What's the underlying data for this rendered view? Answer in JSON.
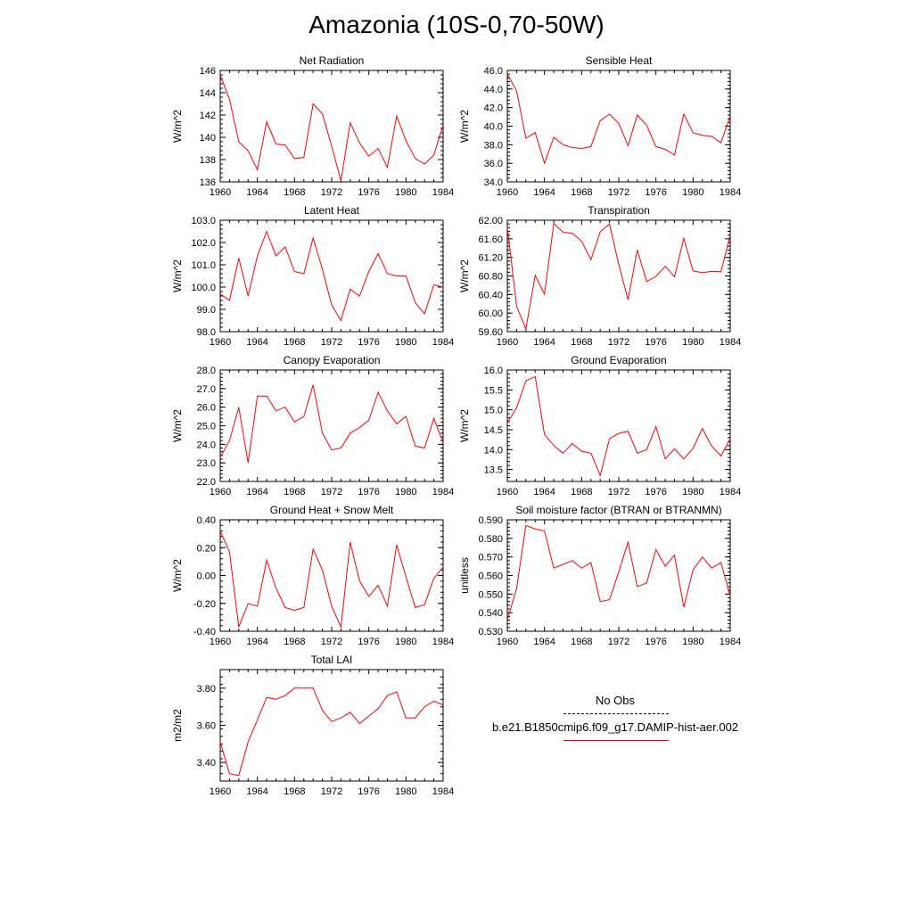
{
  "title": "Amazonia (10S-0,70-50W)",
  "colors": {
    "model": "#ff0000",
    "obs": "#0000cc",
    "axis": "#000000"
  },
  "legend": {
    "obs_label": "No Obs",
    "model_label": "b.e21.B1850cmip6.f09_g17.DAMIP-hist-aer.002"
  },
  "chart_data": [
    {
      "type": "line",
      "title": "Net Radiation",
      "ylabel": "W/m^2",
      "xlabel": "",
      "xlim": [
        1960,
        1984
      ],
      "xticks": [
        "1960",
        "1964",
        "1968",
        "1972",
        "1976",
        "1980",
        "1984"
      ],
      "ylim": [
        136,
        146
      ],
      "yticks": [
        "136",
        "138",
        "140",
        "142",
        "144",
        "146"
      ],
      "x": [
        1960,
        1961,
        1962,
        1963,
        1964,
        1965,
        1966,
        1967,
        1968,
        1969,
        1970,
        1971,
        1972,
        1973,
        1974,
        1975,
        1976,
        1977,
        1978,
        1979,
        1980,
        1981,
        1982,
        1983,
        1984
      ],
      "series": [
        {
          "name": "b.e21.B1850cmip6.f09_g17.DAMIP-hist-aer.002",
          "values": [
            145.6,
            143.4,
            139.6,
            138.8,
            137.1,
            141.4,
            139.4,
            139.3,
            138.1,
            138.2,
            143.0,
            142.1,
            139.2,
            136.1,
            141.3,
            139.5,
            138.3,
            139.0,
            137.3,
            141.9,
            139.7,
            138.1,
            137.6,
            138.4,
            141.1
          ]
        }
      ]
    },
    {
      "type": "line",
      "title": "Sensible Heat",
      "ylabel": "W/m^2",
      "xlabel": "",
      "xlim": [
        1960,
        1984
      ],
      "xticks": [
        "1960",
        "1964",
        "1968",
        "1972",
        "1976",
        "1980",
        "1984"
      ],
      "ylim": [
        34,
        46
      ],
      "yticks": [
        "34.0",
        "36.0",
        "38.0",
        "40.0",
        "42.0",
        "44.0",
        "46.0"
      ],
      "x": [
        1960,
        1961,
        1962,
        1963,
        1964,
        1965,
        1966,
        1967,
        1968,
        1969,
        1970,
        1971,
        1972,
        1973,
        1974,
        1975,
        1976,
        1977,
        1978,
        1979,
        1980,
        1981,
        1982,
        1983,
        1984
      ],
      "series": [
        {
          "name": "b.e21.B1850cmip6.f09_g17.DAMIP-hist-aer.002",
          "values": [
            45.6,
            43.8,
            38.7,
            39.3,
            36.0,
            38.8,
            38.0,
            37.7,
            37.6,
            37.8,
            40.6,
            41.3,
            40.3,
            37.9,
            41.2,
            40.1,
            37.8,
            37.5,
            36.9,
            41.3,
            39.3,
            39.0,
            38.9,
            38.2,
            41.1
          ]
        }
      ]
    },
    {
      "type": "line",
      "title": "Latent Heat",
      "ylabel": "W/m^2",
      "xlabel": "",
      "xlim": [
        1960,
        1984
      ],
      "xticks": [
        "1960",
        "1964",
        "1968",
        "1972",
        "1976",
        "1980",
        "1984"
      ],
      "ylim": [
        98,
        103
      ],
      "yticks": [
        "98.0",
        "99.0",
        "100.0",
        "101.0",
        "102.0",
        "103.0"
      ],
      "x": [
        1960,
        1961,
        1962,
        1963,
        1964,
        1965,
        1966,
        1967,
        1968,
        1969,
        1970,
        1971,
        1972,
        1973,
        1974,
        1975,
        1976,
        1977,
        1978,
        1979,
        1980,
        1981,
        1982,
        1983,
        1984
      ],
      "series": [
        {
          "name": "b.e21.B1850cmip6.f09_g17.DAMIP-hist-aer.002",
          "values": [
            99.7,
            99.4,
            101.3,
            99.6,
            101.4,
            102.5,
            101.4,
            101.8,
            100.7,
            100.6,
            102.2,
            100.8,
            99.2,
            98.5,
            99.9,
            99.6,
            100.7,
            101.5,
            100.6,
            100.5,
            100.5,
            99.3,
            98.8,
            100.1,
            100.0
          ]
        }
      ]
    },
    {
      "type": "line",
      "title": "Transpiration",
      "ylabel": "W/m^2",
      "xlabel": "",
      "xlim": [
        1960,
        1984
      ],
      "xticks": [
        "1960",
        "1964",
        "1968",
        "1972",
        "1976",
        "1980",
        "1984"
      ],
      "ylim": [
        59.6,
        62
      ],
      "yticks": [
        "59.60",
        "60.00",
        "60.40",
        "60.80",
        "61.20",
        "61.60",
        "62.00"
      ],
      "x": [
        1960,
        1961,
        1962,
        1963,
        1964,
        1965,
        1966,
        1967,
        1968,
        1969,
        1970,
        1971,
        1972,
        1973,
        1974,
        1975,
        1976,
        1977,
        1978,
        1979,
        1980,
        1981,
        1982,
        1983,
        1984
      ],
      "series": [
        {
          "name": "b.e21.B1850cmip6.f09_g17.DAMIP-hist-aer.002",
          "values": [
            61.85,
            60.15,
            59.66,
            60.81,
            60.41,
            61.93,
            61.74,
            61.72,
            61.55,
            61.15,
            61.75,
            61.92,
            61.05,
            60.29,
            61.36,
            60.68,
            60.79,
            61.01,
            60.78,
            61.61,
            60.91,
            60.87,
            60.9,
            60.89,
            61.68
          ]
        }
      ]
    },
    {
      "type": "line",
      "title": "Canopy Evaporation",
      "ylabel": "W/m^2",
      "xlabel": "",
      "xlim": [
        1960,
        1984
      ],
      "xticks": [
        "1960",
        "1964",
        "1968",
        "1972",
        "1976",
        "1980",
        "1984"
      ],
      "ylim": [
        22,
        28
      ],
      "yticks": [
        "22.0",
        "23.0",
        "24.0",
        "25.0",
        "26.0",
        "27.0",
        "28.0"
      ],
      "x": [
        1960,
        1961,
        1962,
        1963,
        1964,
        1965,
        1966,
        1967,
        1968,
        1969,
        1970,
        1971,
        1972,
        1973,
        1974,
        1975,
        1976,
        1977,
        1978,
        1979,
        1980,
        1981,
        1982,
        1983,
        1984
      ],
      "series": [
        {
          "name": "b.e21.B1850cmip6.f09_g17.DAMIP-hist-aer.002",
          "values": [
            23.3,
            24.2,
            26.0,
            23.0,
            26.6,
            26.6,
            25.8,
            26.0,
            25.2,
            25.5,
            27.2,
            24.6,
            23.7,
            23.8,
            24.6,
            24.9,
            25.3,
            26.8,
            25.8,
            25.1,
            25.5,
            23.9,
            23.8,
            25.4,
            24.1
          ]
        }
      ]
    },
    {
      "type": "line",
      "title": "Ground Evaporation",
      "ylabel": "W/m^2",
      "xlabel": "",
      "xlim": [
        1960,
        1984
      ],
      "xticks": [
        "1960",
        "1964",
        "1968",
        "1972",
        "1976",
        "1980",
        "1984"
      ],
      "ylim": [
        13.2,
        16
      ],
      "yticks": [
        "13.5",
        "14.0",
        "14.5",
        "15.0",
        "15.5",
        "16.0"
      ],
      "x": [
        1960,
        1961,
        1962,
        1963,
        1964,
        1965,
        1966,
        1967,
        1968,
        1969,
        1970,
        1971,
        1972,
        1973,
        1974,
        1975,
        1976,
        1977,
        1978,
        1979,
        1980,
        1981,
        1982,
        1983,
        1984
      ],
      "series": [
        {
          "name": "b.e21.B1850cmip6.f09_g17.DAMIP-hist-aer.002",
          "values": [
            14.67,
            15.05,
            15.73,
            15.83,
            14.38,
            14.1,
            13.91,
            14.15,
            13.96,
            13.91,
            13.35,
            14.27,
            14.41,
            14.46,
            13.91,
            14.0,
            14.58,
            13.77,
            14.02,
            13.77,
            14.03,
            14.53,
            14.09,
            13.84,
            14.27
          ]
        }
      ]
    },
    {
      "type": "line",
      "title": "Ground Heat + Snow Melt",
      "ylabel": "W/m^2",
      "xlabel": "",
      "xlim": [
        1960,
        1984
      ],
      "xticks": [
        "1960",
        "1964",
        "1968",
        "1972",
        "1976",
        "1980",
        "1984"
      ],
      "ylim": [
        -0.4,
        0.4
      ],
      "yticks": [
        "-0.40",
        "-0.20",
        "0.00",
        "0.20",
        "0.40"
      ],
      "x": [
        1960,
        1961,
        1962,
        1963,
        1964,
        1965,
        1966,
        1967,
        1968,
        1969,
        1970,
        1971,
        1972,
        1973,
        1974,
        1975,
        1976,
        1977,
        1978,
        1979,
        1980,
        1981,
        1982,
        1983,
        1984
      ],
      "series": [
        {
          "name": "b.e21.B1850cmip6.f09_g17.DAMIP-hist-aer.002",
          "values": [
            0.32,
            0.17,
            -0.37,
            -0.2,
            -0.22,
            0.11,
            -0.09,
            -0.23,
            -0.25,
            -0.23,
            0.19,
            0.04,
            -0.22,
            -0.37,
            0.24,
            -0.04,
            -0.15,
            -0.07,
            -0.22,
            0.22,
            -0.01,
            -0.23,
            -0.21,
            -0.02,
            0.06
          ]
        }
      ]
    },
    {
      "type": "line",
      "title": "Soil moisture factor (BTRAN or BTRANMN)",
      "ylabel": "unitless",
      "xlabel": "",
      "xlim": [
        1960,
        1984
      ],
      "xticks": [
        "1960",
        "1964",
        "1968",
        "1972",
        "1976",
        "1980",
        "1984"
      ],
      "ylim": [
        0.53,
        0.59
      ],
      "yticks": [
        "0.530",
        "0.540",
        "0.550",
        "0.560",
        "0.570",
        "0.580",
        "0.590"
      ],
      "x": [
        1960,
        1961,
        1962,
        1963,
        1964,
        1965,
        1966,
        1967,
        1968,
        1969,
        1970,
        1971,
        1972,
        1973,
        1974,
        1975,
        1976,
        1977,
        1978,
        1979,
        1980,
        1981,
        1982,
        1983,
        1984
      ],
      "series": [
        {
          "name": "b.e21.B1850cmip6.f09_g17.DAMIP-hist-aer.002",
          "values": [
            0.536,
            0.553,
            0.587,
            0.585,
            0.584,
            0.564,
            0.566,
            0.568,
            0.564,
            0.567,
            0.546,
            0.547,
            0.562,
            0.578,
            0.554,
            0.556,
            0.574,
            0.565,
            0.571,
            0.543,
            0.563,
            0.57,
            0.564,
            0.567,
            0.549
          ]
        }
      ]
    },
    {
      "type": "line",
      "title": "Total LAI",
      "ylabel": "m2/m2",
      "xlabel": "",
      "xlim": [
        1960,
        1984
      ],
      "xticks": [
        "1960",
        "1964",
        "1968",
        "1972",
        "1976",
        "1980",
        "1984"
      ],
      "ylim": [
        3.3,
        3.9
      ],
      "yticks": [
        "3.40",
        "3.60",
        "3.80"
      ],
      "x": [
        1960,
        1961,
        1962,
        1963,
        1964,
        1965,
        1966,
        1967,
        1968,
        1969,
        1970,
        1971,
        1972,
        1973,
        1974,
        1975,
        1976,
        1977,
        1978,
        1979,
        1980,
        1981,
        1982,
        1983,
        1984
      ],
      "series": [
        {
          "name": "b.e21.B1850cmip6.f09_g17.DAMIP-hist-aer.002",
          "values": [
            3.51,
            3.34,
            3.33,
            3.51,
            3.63,
            3.75,
            3.74,
            3.76,
            3.8,
            3.8,
            3.8,
            3.68,
            3.62,
            3.64,
            3.67,
            3.61,
            3.65,
            3.69,
            3.76,
            3.78,
            3.64,
            3.64,
            3.7,
            3.73,
            3.71
          ]
        }
      ]
    }
  ]
}
